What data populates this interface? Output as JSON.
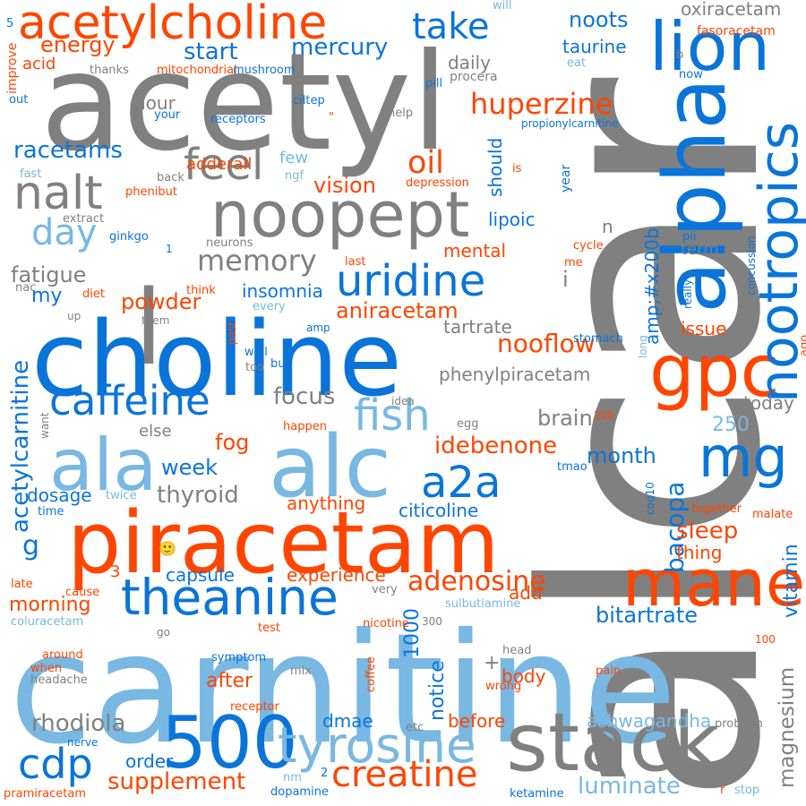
{
  "palette": {
    "orange": "#ff4500",
    "blue": "#0a74d9",
    "lightblue": "#78b8e2",
    "gray": "#808080"
  },
  "words": [
    {
      "text": "alcar",
      "color": "gray",
      "vertical": true
    },
    {
      "text": "carnitine",
      "color": "lightblue"
    },
    {
      "text": "acetyl",
      "color": "gray"
    },
    {
      "text": "choline",
      "color": "blue"
    },
    {
      "text": "piracetam",
      "color": "orange"
    },
    {
      "text": "500",
      "color": "blue"
    },
    {
      "text": "stack",
      "color": "gray"
    },
    {
      "text": "alpha",
      "color": "blue",
      "vertical": true
    },
    {
      "text": "gpc",
      "color": "orange"
    },
    {
      "text": "alc",
      "color": "lightblue"
    },
    {
      "text": "ala",
      "color": "lightblue"
    },
    {
      "text": "l",
      "color": "gray"
    },
    {
      "text": "noopept",
      "color": "gray"
    },
    {
      "text": "acetylcholine",
      "color": "orange"
    },
    {
      "text": "mane",
      "color": "orange"
    },
    {
      "text": "theanine",
      "color": "blue"
    },
    {
      "text": "tyrosine",
      "color": "lightblue"
    },
    {
      "text": "lion",
      "color": "blue"
    },
    {
      "text": "mg",
      "color": "blue"
    },
    {
      "text": "nootropics",
      "color": "blue",
      "vertical": true
    },
    {
      "text": "caffeine",
      "color": "blue"
    },
    {
      "text": "uridine",
      "color": "blue"
    },
    {
      "text": "nalt",
      "color": "gray"
    },
    {
      "text": "feel",
      "color": "gray"
    },
    {
      "text": "fish",
      "color": "lightblue"
    },
    {
      "text": "a2a",
      "color": "blue"
    },
    {
      "text": "day",
      "color": "lightblue"
    },
    {
      "text": "cdp",
      "color": "blue"
    },
    {
      "text": "creatine",
      "color": "orange"
    },
    {
      "text": "adenosine",
      "color": "orange"
    },
    {
      "text": "memory",
      "color": "gray"
    },
    {
      "text": "huperzine",
      "color": "orange"
    },
    {
      "text": "take",
      "color": "blue"
    },
    {
      "text": "oil",
      "color": "orange"
    },
    {
      "text": "nooflow",
      "color": "orange"
    },
    {
      "text": "bacopa",
      "color": "blue",
      "vertical": true
    },
    {
      "text": "rhodiola",
      "color": "gray"
    },
    {
      "text": "supplement",
      "color": "orange"
    },
    {
      "text": "luminate",
      "color": "lightblue"
    },
    {
      "text": "mercury",
      "color": "blue"
    },
    {
      "text": "energy",
      "color": "orange"
    },
    {
      "text": "racetams",
      "color": "blue"
    },
    {
      "text": "start",
      "color": "blue"
    },
    {
      "text": "fatigue",
      "color": "gray"
    },
    {
      "text": "acetylcarnitine",
      "color": "blue",
      "vertical": true
    },
    {
      "text": "aniracetam",
      "color": "orange"
    },
    {
      "text": "thyroid",
      "color": "gray"
    },
    {
      "text": "bitartrate",
      "color": "blue"
    },
    {
      "text": "magnesium",
      "color": "gray",
      "vertical": true
    },
    {
      "text": "vitamin",
      "color": "blue",
      "vertical": true
    },
    {
      "text": "focus",
      "color": "gray"
    },
    {
      "text": "powder",
      "color": "orange"
    },
    {
      "text": "idebenone",
      "color": "orange"
    },
    {
      "text": "vision",
      "color": "orange"
    },
    {
      "text": "noots",
      "color": "blue"
    },
    {
      "text": "brain",
      "color": "gray"
    },
    {
      "text": "month",
      "color": "blue"
    },
    {
      "text": "sleep",
      "color": "orange"
    },
    {
      "text": "week",
      "color": "blue"
    },
    {
      "text": "morning",
      "color": "orange"
    },
    {
      "text": "fog",
      "color": "orange"
    },
    {
      "text": "250",
      "color": "lightblue"
    },
    {
      "text": "1000",
      "color": "blue",
      "vertical": true
    },
    {
      "text": "dmae",
      "color": "blue"
    },
    {
      "text": "after",
      "color": "orange"
    },
    {
      "text": "order",
      "color": "blue"
    },
    {
      "text": "ashwagandha",
      "color": "lightblue"
    },
    {
      "text": "citicoline",
      "color": "blue"
    },
    {
      "text": "lipoic",
      "color": "blue"
    },
    {
      "text": "taurine",
      "color": "blue"
    },
    {
      "text": "oxiracetam",
      "color": "gray"
    },
    {
      "text": "daily",
      "color": "gray"
    },
    {
      "text": "hour",
      "color": "gray"
    },
    {
      "text": "my",
      "color": "blue"
    },
    {
      "text": "g",
      "color": "blue"
    },
    {
      "text": "insomnia",
      "color": "blue"
    },
    {
      "text": "capsule",
      "color": "blue"
    },
    {
      "text": "experience",
      "color": "orange"
    },
    {
      "text": "dosage",
      "color": "blue"
    },
    {
      "text": "anything",
      "color": "orange"
    },
    {
      "text": "phenylpiracetam",
      "color": "gray"
    },
    {
      "text": "tartrate",
      "color": "gray"
    },
    {
      "text": "mental",
      "color": "orange"
    },
    {
      "text": "amp;#x200b",
      "color": "blue",
      "vertical": true
    },
    {
      "text": "few",
      "color": "lightblue"
    },
    {
      "text": "adderall",
      "color": "orange"
    },
    {
      "text": "term",
      "color": "gray"
    },
    {
      "text": "issue",
      "color": "orange"
    },
    {
      "text": "today",
      "color": "gray"
    },
    {
      "text": "thing",
      "color": "orange"
    },
    {
      "text": "else",
      "color": "gray"
    },
    {
      "text": "add",
      "color": "orange"
    },
    {
      "text": "body",
      "color": "orange"
    },
    {
      "text": "before",
      "color": "orange"
    },
    {
      "text": "notice",
      "color": "blue",
      "vertical": true
    },
    {
      "text": "acid",
      "color": "orange"
    },
    {
      "text": "i",
      "color": "gray"
    },
    {
      "text": "n",
      "color": "gray"
    },
    {
      "text": "+",
      "color": "gray"
    },
    {
      "text": "3",
      "color": "orange"
    },
    {
      "text": "should",
      "color": "blue",
      "vertical": true
    },
    {
      "text": "fasoracetam",
      "color": "orange"
    },
    {
      "text": "will",
      "color": "lightblue"
    },
    {
      "text": "5",
      "color": "blue"
    },
    {
      "text": "improve",
      "color": "orange",
      "vertical": true
    },
    {
      "text": "out",
      "color": "blue"
    },
    {
      "text": "thanks",
      "color": "gray"
    },
    {
      "text": "mitochondrial",
      "color": "orange"
    },
    {
      "text": "mushroom",
      "color": "blue"
    },
    {
      "text": "pill",
      "color": "blue"
    },
    {
      "text": "procera",
      "color": "gray"
    },
    {
      "text": "eat",
      "color": "lightblue"
    },
    {
      "text": "b",
      "color": "gray"
    },
    {
      "text": "now",
      "color": "blue"
    },
    {
      "text": "your",
      "color": "blue"
    },
    {
      "text": "receptors",
      "color": "blue"
    },
    {
      "text": "ciltep",
      "color": "blue"
    },
    {
      "text": "\"",
      "color": "orange"
    },
    {
      "text": "help",
      "color": "gray"
    },
    {
      "text": "propionylcarnitine",
      "color": "blue"
    },
    {
      "text": "fast",
      "color": "lightblue"
    },
    {
      "text": "back",
      "color": "gray"
    },
    {
      "text": "ngf",
      "color": "lightblue"
    },
    {
      "text": "phenibut",
      "color": "orange"
    },
    {
      "text": "depression",
      "color": "orange"
    },
    {
      "text": "is",
      "color": "orange"
    },
    {
      "text": "year",
      "color": "blue",
      "vertical": true
    },
    {
      "text": "a1",
      "color": "gray"
    },
    {
      "text": "extract",
      "color": "gray"
    },
    {
      "text": "ginkgo",
      "color": "blue"
    },
    {
      "text": "1",
      "color": "blue"
    },
    {
      "text": "neurons",
      "color": "gray"
    },
    {
      "text": "nac",
      "color": "gray"
    },
    {
      "text": "last",
      "color": "orange"
    },
    {
      "text": "cycle",
      "color": "orange"
    },
    {
      "text": "me",
      "color": "orange"
    },
    {
      "text": "pii",
      "color": "blue"
    },
    {
      "text": "concussion",
      "color": "blue",
      "vertical": true
    },
    {
      "text": "diet",
      "color": "orange"
    },
    {
      "text": "think",
      "color": "orange"
    },
    {
      "text": "every",
      "color": "lightblue"
    },
    {
      "text": "up",
      "color": "gray"
    },
    {
      "text": "them",
      "color": "gray"
    },
    {
      "text": "past",
      "color": "orange",
      "vertical": true
    },
    {
      "text": "amp",
      "color": "blue"
    },
    {
      "text": "really",
      "color": "blue",
      "vertical": true
    },
    {
      "text": "long",
      "color": "lightblue",
      "vertical": true
    },
    {
      "text": "stomach",
      "color": "blue"
    },
    {
      "text": "ago",
      "color": "orange",
      "vertical": true
    },
    {
      "text": "well",
      "color": "blue"
    },
    {
      "text": "too",
      "color": "gray"
    },
    {
      "text": "buy",
      "color": "blue"
    },
    {
      "text": "idea",
      "color": "gray"
    },
    {
      "text": "happen",
      "color": "orange"
    },
    {
      "text": "egg",
      "color": "gray"
    },
    {
      "text": "200",
      "color": "orange"
    },
    {
      "text": "want",
      "color": "gray",
      "vertical": true
    },
    {
      "text": "tmao",
      "color": "blue"
    },
    {
      "text": "twice",
      "color": "lightblue"
    },
    {
      "text": "time",
      "color": "blue"
    },
    {
      "text": "coq10",
      "color": "blue",
      "vertical": true
    },
    {
      "text": "together",
      "color": "orange"
    },
    {
      "text": "malate",
      "color": "orange"
    },
    {
      "text": "🙂",
      "color": "blue"
    },
    {
      "text": "late",
      "color": "orange"
    },
    {
      "text": "cause",
      "color": "orange"
    },
    {
      "text": "very",
      "color": "gray"
    },
    {
      "text": "sulbutiamine",
      "color": "lightblue"
    },
    {
      "text": "coluracetam",
      "color": "lightblue"
    },
    {
      "text": "go",
      "color": "gray"
    },
    {
      "text": "test",
      "color": "orange"
    },
    {
      "text": "nicotine",
      "color": "orange"
    },
    {
      "text": "300",
      "color": "gray"
    },
    {
      "text": "head",
      "color": "gray"
    },
    {
      "text": "100",
      "color": "orange"
    },
    {
      "text": "around",
      "color": "orange"
    },
    {
      "text": "symptom",
      "color": "blue"
    },
    {
      "text": "when",
      "color": "orange"
    },
    {
      "text": "headache",
      "color": "gray"
    },
    {
      "text": "mix",
      "color": "gray"
    },
    {
      "text": "coffee",
      "color": "orange",
      "vertical": true
    },
    {
      "text": "wrong",
      "color": "orange"
    },
    {
      "text": "pain",
      "color": "orange"
    },
    {
      "text": "receptor",
      "color": "orange"
    },
    {
      "text": "etc",
      "color": "gray"
    },
    {
      "text": "problem",
      "color": "gray"
    },
    {
      "text": "nerve",
      "color": "blue"
    },
    {
      "text": "2",
      "color": "blue"
    },
    {
      "text": "nm",
      "color": "lightblue"
    },
    {
      "text": "pramiracetam",
      "color": "orange"
    },
    {
      "text": "dopamine",
      "color": "blue"
    },
    {
      "text": "ketamine",
      "color": "blue"
    },
    {
      "text": "r",
      "color": "orange"
    },
    {
      "text": "stop",
      "color": "lightblue"
    }
  ]
}
